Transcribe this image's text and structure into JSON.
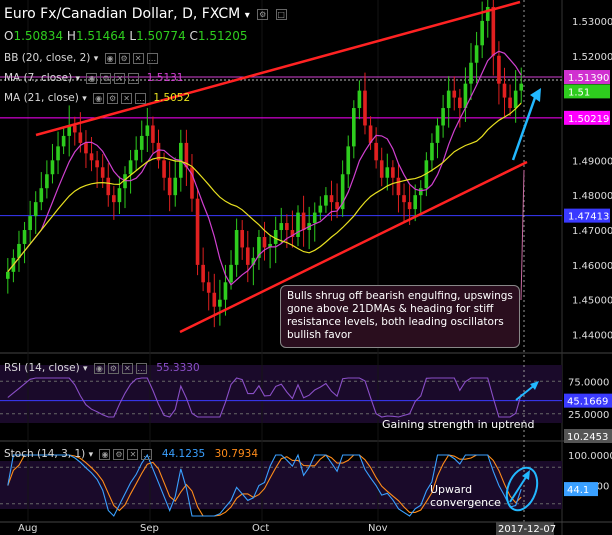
{
  "header": {
    "title": "Euro Fx/Canadian Dollar, D, FXCM",
    "open_label": "O",
    "open": "1.50834",
    "high_label": "H",
    "high": "1.51464",
    "low_label": "L",
    "low": "1.50774",
    "close_label": "C",
    "close": "1.51205"
  },
  "indicators": {
    "bb": "BB (20, close, 2)",
    "ma7": "MA (7, close)",
    "ma7_value": "1.5131",
    "ma21": "MA (21, close)",
    "ma21_value": "1.5052",
    "rsi": "RSI (14, close)",
    "rsi_value": "55.3330",
    "stoch": "Stoch (14, 3, 1)",
    "stoch_k": "44.1235",
    "stoch_d": "30.7934"
  },
  "colors": {
    "bull": "#2ecc1e",
    "bear": "#e02020",
    "ma7": "#d040d0",
    "ma21": "#e8e020",
    "trend": "#ff2222",
    "arrow": "#22b8ff",
    "hline_blue": "#3a3aff",
    "hline_magenta": "#ff00ff",
    "rsi_line": "#8a4fc7",
    "stoch_k": "#3aa0ff",
    "stoch_d": "#ff8c1a"
  },
  "price_axis": {
    "labels": [
      "1.53000",
      "1.52000",
      "1.49000",
      "1.48000",
      "1.47000",
      "1.46000",
      "1.45000",
      "1.44000"
    ],
    "tags": [
      {
        "text": "1.51390",
        "bg": "#d030d0"
      },
      {
        "text": "1.51",
        "bg": "#2ecc1e"
      },
      {
        "text": "1.50219",
        "bg": "#ff00ff"
      },
      {
        "text": "1.47413",
        "bg": "#3a3aff"
      }
    ]
  },
  "rsi_axis": {
    "labels": [
      "75.0000",
      "25.0000"
    ],
    "tags": [
      {
        "text": "45.1669",
        "bg": "#3a3aff"
      },
      {
        "text": "10.2453",
        "bg": "#555555"
      }
    ]
  },
  "stoch_axis": {
    "labels": [
      "100.0000",
      "50.0000"
    ],
    "tags": [
      {
        "text": "44.1",
        "bg": "#3aa0ff"
      }
    ]
  },
  "x_axis": {
    "labels": [
      "Aug",
      "Sep",
      "Oct",
      "Nov"
    ],
    "current_date": "2017-12-07"
  },
  "annotations": {
    "main_note": "Bulls shrug off bearish engulfing, upswings gone above 21DMAs & heading for stiff resistance levels, both leading oscillators bullish favor",
    "rsi_note": "Gaining strength in uptrend",
    "stoch_note": "Upward convergence"
  },
  "chart_data": {
    "type": "candlestick",
    "title": "Euro Fx/Canadian Dollar, D, FXCM",
    "ylim": [
      1.435,
      1.536
    ],
    "close_series": [
      1.458,
      1.462,
      1.466,
      1.47,
      1.474,
      1.478,
      1.482,
      1.486,
      1.49,
      1.494,
      1.497,
      1.5,
      1.498,
      1.495,
      1.492,
      1.49,
      1.488,
      1.485,
      1.48,
      1.478,
      1.482,
      1.486,
      1.49,
      1.493,
      1.497,
      1.5,
      1.495,
      1.49,
      1.485,
      1.48,
      1.485,
      1.495,
      1.488,
      1.479,
      1.46,
      1.455,
      1.452,
      1.448,
      1.45,
      1.455,
      1.46,
      1.47,
      1.465,
      1.46,
      1.462,
      1.468,
      1.465,
      1.466,
      1.47,
      1.472,
      1.47,
      1.468,
      1.475,
      1.47,
      1.472,
      1.475,
      1.477,
      1.48,
      1.478,
      1.476,
      1.486,
      1.494,
      1.505,
      1.51,
      1.5,
      1.495,
      1.49,
      1.485,
      1.488,
      1.485,
      1.48,
      1.478,
      1.476,
      1.48,
      1.482,
      1.49,
      1.495,
      1.5,
      1.505,
      1.51,
      1.508,
      1.505,
      1.512,
      1.518,
      1.523,
      1.53,
      1.534,
      1.52,
      1.512,
      1.508,
      1.505,
      1.51,
      1.512
    ],
    "ma7_value": 1.5131,
    "ma21_value": 1.5052,
    "levels": [
      1.5139,
      1.50219,
      1.47413
    ],
    "rsi_last": 55.333,
    "rsi_levels": [
      75,
      45.1669,
      25
    ],
    "stoch_k_last": 44.1235,
    "stoch_d_last": 30.7934
  }
}
